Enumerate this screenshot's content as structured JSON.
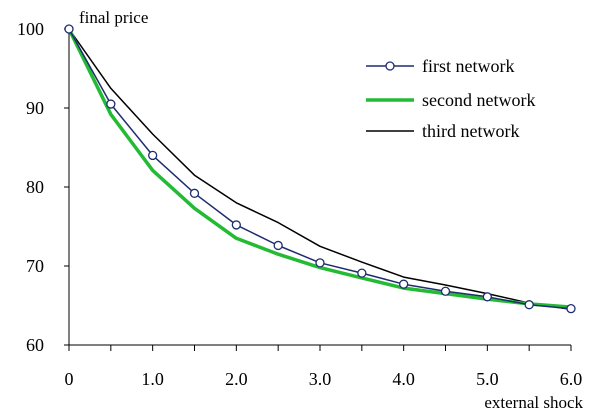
{
  "chart_data": {
    "type": "line",
    "ylabel": "final price",
    "xlabel": "external shock",
    "xlim": [
      0,
      6
    ],
    "ylim": [
      60,
      100
    ],
    "grid": false,
    "legend_position": "top-right",
    "x_ticks": [
      0,
      0.5,
      1,
      1.5,
      2,
      2.5,
      3,
      3.5,
      4,
      4.5,
      5,
      5.5,
      6
    ],
    "x_tick_labels": [
      {
        "value": 0,
        "label": "0"
      },
      {
        "value": 1,
        "label": "1.0"
      },
      {
        "value": 2,
        "label": "2.0"
      },
      {
        "value": 3,
        "label": "3.0"
      },
      {
        "value": 4,
        "label": "4.0"
      },
      {
        "value": 5,
        "label": "5.0"
      },
      {
        "value": 6,
        "label": "6.0"
      }
    ],
    "y_ticks": [
      {
        "value": 60,
        "label": "60"
      },
      {
        "value": 70,
        "label": "70"
      },
      {
        "value": 80,
        "label": "80"
      },
      {
        "value": 90,
        "label": "90"
      },
      {
        "value": 100,
        "label": "100"
      }
    ],
    "x": [
      0,
      0.5,
      1,
      1.5,
      2,
      2.5,
      3,
      3.5,
      4,
      4.5,
      5,
      5.5,
      6
    ],
    "series": [
      {
        "name": "first network",
        "color": "#1f2d6e",
        "marker": "circle",
        "values": [
          100,
          90.5,
          84.0,
          79.2,
          75.2,
          72.6,
          70.4,
          69.1,
          67.7,
          66.8,
          66.1,
          65.1,
          64.6
        ]
      },
      {
        "name": "second network",
        "color": "#22bb33",
        "marker": "none",
        "values": [
          100,
          89.2,
          82.1,
          77.3,
          73.5,
          71.5,
          69.8,
          68.5,
          67.2,
          66.5,
          65.8,
          65.2,
          64.8
        ]
      },
      {
        "name": "third network",
        "color": "#000000",
        "marker": "none",
        "values": [
          100,
          92.5,
          86.7,
          81.5,
          78.0,
          75.5,
          72.5,
          70.5,
          68.6,
          67.6,
          66.5,
          65.3,
          64.5
        ]
      }
    ]
  }
}
